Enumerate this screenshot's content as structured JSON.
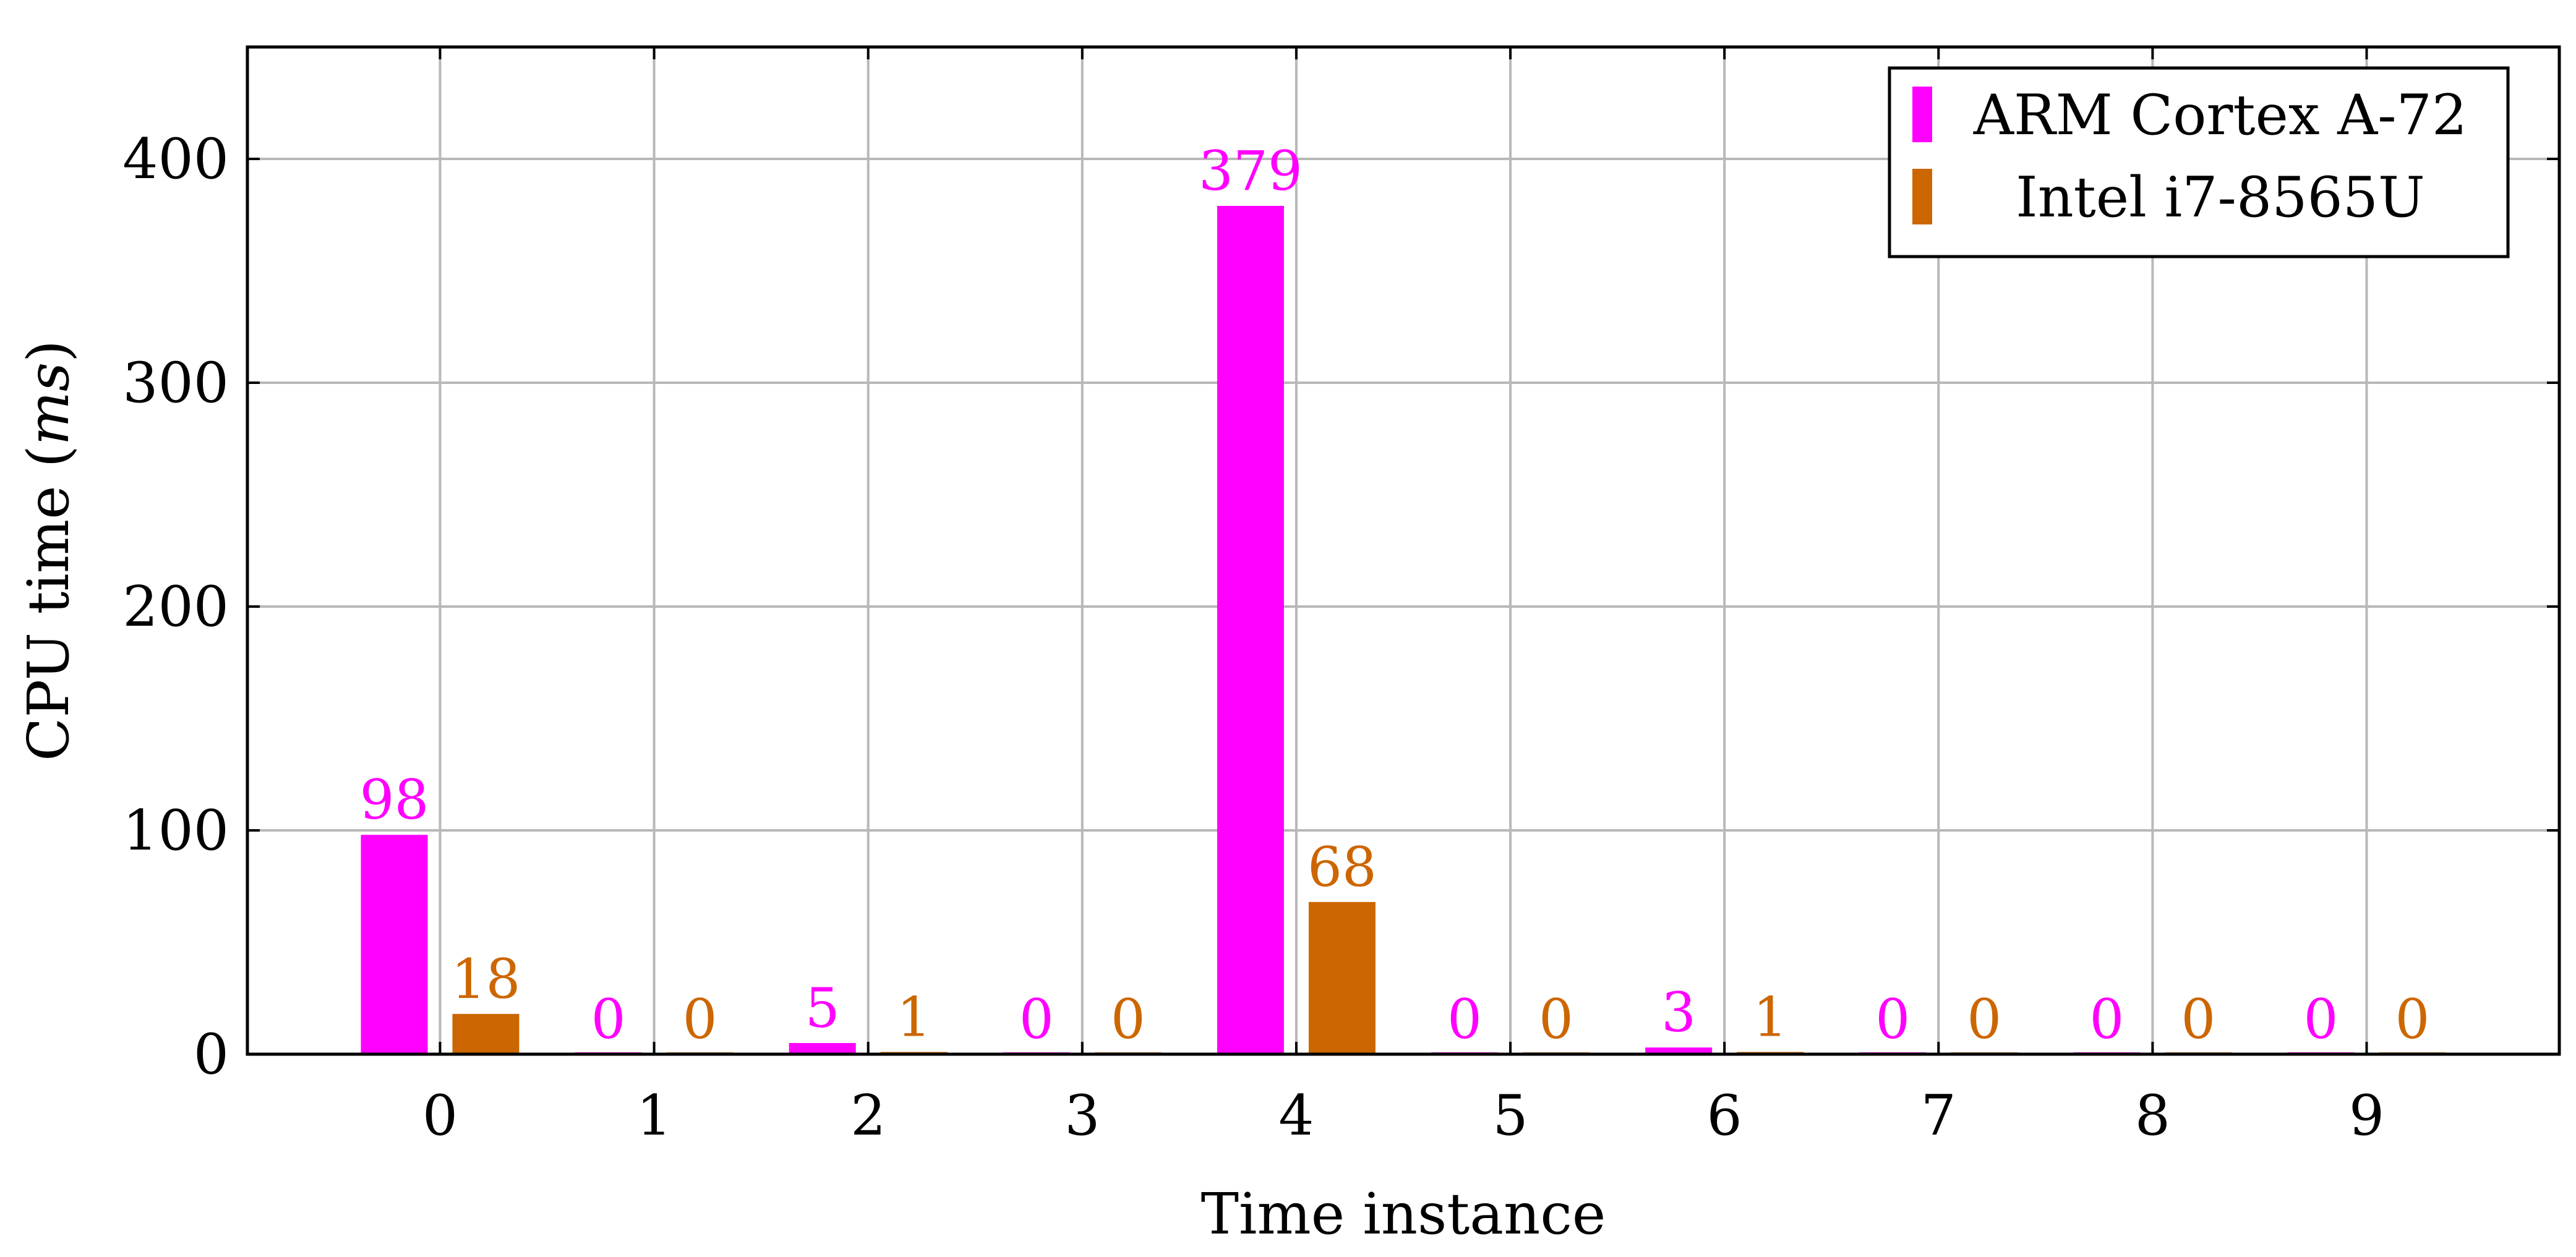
{
  "chart_data": {
    "type": "bar",
    "categories": [
      "0",
      "1",
      "2",
      "3",
      "4",
      "5",
      "6",
      "7",
      "8",
      "9"
    ],
    "series": [
      {
        "name": "ARM Cortex A-72",
        "color": "#ff00ff",
        "values": [
          98,
          0,
          5,
          0,
          379,
          0,
          3,
          0,
          0,
          0
        ]
      },
      {
        "name": "Intel i7-8565U",
        "color": "#cc6600",
        "values": [
          18,
          0,
          1,
          0,
          68,
          0,
          1,
          0,
          0,
          0
        ]
      }
    ],
    "title": "",
    "xlabel": "Time instance",
    "ylabel_main": "CPU time (",
    "ylabel_unit": "ms",
    "ylabel_close": ")",
    "ylim": [
      0,
      450
    ],
    "xlim": [
      -0.9,
      9.9
    ],
    "yticks": [
      0,
      100,
      200,
      300,
      400
    ],
    "grid": true,
    "legend_position": "top-right"
  }
}
